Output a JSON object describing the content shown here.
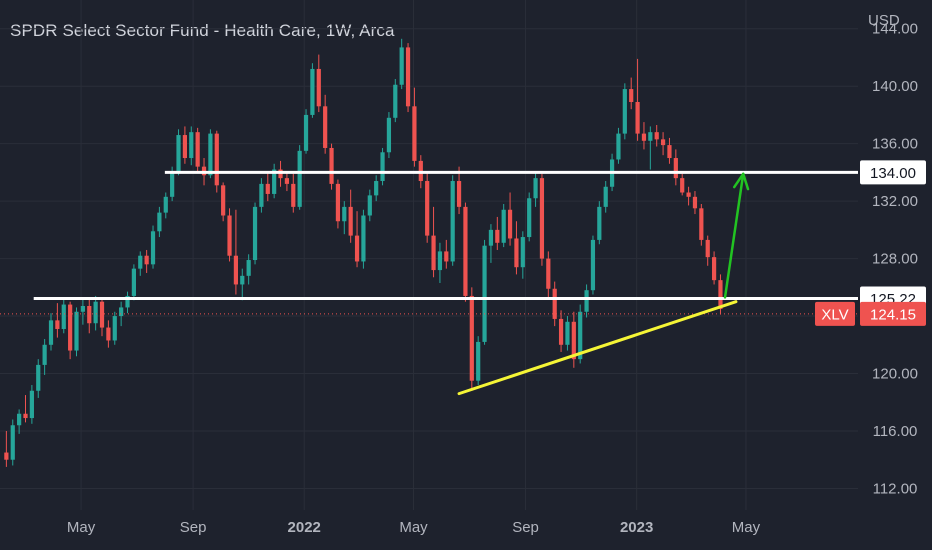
{
  "title": "SPDR Select Sector Fund - Health Care, 1W, Arca",
  "currency": "USD",
  "colors": {
    "background": "#1e222d",
    "grid": "#2a2e39",
    "up": "#26a69a",
    "down": "#ef5350",
    "axis_text": "#b2b5be",
    "horizontal_lines": "#ffffff",
    "trendline": "#f5f536",
    "arrow": "#22c322",
    "price_line": "#ef5350"
  },
  "chart_data": {
    "type": "candlestick",
    "symbol": "XLV",
    "interval": "1W",
    "exchange": "Arca",
    "y_ticks": [
      "112.00",
      "116.00",
      "120.00",
      "124.00",
      "128.00",
      "132.00",
      "136.00",
      "140.00",
      "144.00"
    ],
    "y_range": [
      110.5,
      146.0
    ],
    "x_labels": [
      {
        "label": "May",
        "date": "2021-05-01",
        "bold": false
      },
      {
        "label": "Sep",
        "date": "2021-09-01",
        "bold": false
      },
      {
        "label": "2022",
        "date": "2022-01-01",
        "bold": true
      },
      {
        "label": "May",
        "date": "2022-05-01",
        "bold": false
      },
      {
        "label": "Sep",
        "date": "2022-09-01",
        "bold": false
      },
      {
        "label": "2023",
        "date": "2023-01-01",
        "bold": true
      },
      {
        "label": "May",
        "date": "2023-05-01",
        "bold": false
      }
    ],
    "x_range": [
      "2021-02-01",
      "2023-09-01"
    ],
    "first_candle_week": "2021-02-08",
    "candles": [
      [
        114.5,
        116.0,
        113.5,
        114.0
      ],
      [
        114.0,
        116.8,
        113.6,
        116.4
      ],
      [
        116.4,
        117.5,
        115.8,
        117.2
      ],
      [
        117.2,
        118.5,
        116.6,
        116.9
      ],
      [
        116.9,
        119.2,
        116.5,
        118.8
      ],
      [
        118.8,
        121.0,
        118.3,
        120.6
      ],
      [
        120.6,
        122.4,
        119.9,
        122.0
      ],
      [
        122.0,
        124.2,
        121.6,
        123.7
      ],
      [
        123.7,
        124.9,
        122.5,
        123.1
      ],
      [
        123.1,
        125.3,
        122.8,
        124.8
      ],
      [
        124.8,
        125.0,
        121.0,
        121.6
      ],
      [
        121.6,
        124.6,
        121.2,
        124.3
      ],
      [
        124.3,
        125.3,
        123.4,
        124.7
      ],
      [
        124.7,
        125.2,
        122.8,
        123.5
      ],
      [
        123.5,
        125.4,
        123.0,
        125.0
      ],
      [
        125.0,
        125.3,
        122.6,
        123.2
      ],
      [
        123.2,
        123.7,
        121.8,
        122.3
      ],
      [
        122.3,
        124.3,
        122.0,
        124.0
      ],
      [
        124.0,
        125.0,
        123.3,
        124.6
      ],
      [
        124.6,
        125.7,
        124.2,
        125.4
      ],
      [
        125.4,
        127.6,
        125.1,
        127.3
      ],
      [
        127.3,
        128.5,
        126.8,
        128.2
      ],
      [
        128.2,
        128.6,
        127.0,
        127.6
      ],
      [
        127.6,
        130.3,
        127.3,
        129.9
      ],
      [
        129.9,
        131.6,
        129.5,
        131.2
      ],
      [
        131.2,
        132.6,
        130.8,
        132.3
      ],
      [
        132.3,
        134.4,
        132.0,
        134.0
      ],
      [
        134.0,
        137.0,
        133.8,
        136.6
      ],
      [
        136.6,
        137.2,
        134.6,
        135.0
      ],
      [
        135.0,
        137.2,
        134.5,
        136.8
      ],
      [
        136.8,
        137.1,
        134.0,
        134.4
      ],
      [
        134.4,
        135.0,
        133.1,
        133.8
      ],
      [
        133.8,
        137.0,
        133.6,
        136.7
      ],
      [
        136.7,
        136.9,
        132.6,
        133.1
      ],
      [
        133.1,
        133.3,
        130.6,
        131.0
      ],
      [
        131.0,
        131.5,
        127.8,
        128.2
      ],
      [
        128.2,
        131.4,
        125.5,
        126.2
      ],
      [
        126.2,
        127.3,
        125.1,
        126.8
      ],
      [
        126.8,
        128.3,
        126.2,
        127.9
      ],
      [
        127.9,
        131.9,
        127.6,
        131.6
      ],
      [
        131.6,
        133.6,
        131.2,
        133.2
      ],
      [
        133.2,
        134.0,
        132.0,
        132.5
      ],
      [
        132.5,
        134.6,
        132.2,
        134.2
      ],
      [
        134.2,
        134.8,
        133.0,
        133.6
      ],
      [
        133.6,
        134.0,
        132.7,
        133.2
      ],
      [
        133.2,
        133.9,
        131.2,
        131.6
      ],
      [
        131.6,
        135.9,
        131.4,
        135.5
      ],
      [
        135.5,
        138.4,
        135.3,
        138.0
      ],
      [
        138.0,
        141.6,
        137.8,
        141.2
      ],
      [
        141.2,
        142.2,
        138.2,
        138.6
      ],
      [
        138.6,
        139.4,
        135.3,
        135.7
      ],
      [
        135.7,
        136.0,
        132.8,
        133.2
      ],
      [
        133.2,
        133.5,
        130.1,
        130.6
      ],
      [
        130.6,
        132.0,
        129.7,
        131.6
      ],
      [
        131.6,
        132.8,
        129.1,
        129.6
      ],
      [
        129.6,
        131.3,
        127.4,
        127.8
      ],
      [
        127.8,
        131.4,
        127.3,
        131.0
      ],
      [
        131.0,
        132.8,
        130.6,
        132.4
      ],
      [
        132.4,
        133.8,
        132.0,
        133.4
      ],
      [
        133.4,
        135.7,
        133.1,
        135.4
      ],
      [
        135.4,
        138.2,
        135.0,
        137.8
      ],
      [
        137.8,
        140.5,
        137.5,
        140.1
      ],
      [
        140.1,
        143.3,
        139.8,
        142.7
      ],
      [
        142.7,
        143.0,
        138.2,
        138.6
      ],
      [
        138.6,
        139.9,
        134.4,
        134.8
      ],
      [
        134.8,
        135.2,
        132.9,
        133.4
      ],
      [
        133.4,
        134.0,
        129.1,
        129.6
      ],
      [
        129.6,
        131.6,
        126.7,
        127.2
      ],
      [
        127.2,
        129.1,
        126.3,
        128.5
      ],
      [
        128.5,
        129.3,
        127.3,
        127.8
      ],
      [
        127.8,
        133.8,
        127.5,
        133.4
      ],
      [
        133.4,
        134.4,
        131.1,
        131.6
      ],
      [
        131.6,
        131.9,
        125.0,
        125.4
      ],
      [
        125.4,
        126.0,
        118.8,
        119.5
      ],
      [
        119.5,
        122.6,
        119.2,
        122.2
      ],
      [
        122.2,
        129.3,
        122.0,
        128.9
      ],
      [
        128.9,
        130.4,
        127.7,
        130.0
      ],
      [
        130.0,
        130.9,
        128.6,
        129.1
      ],
      [
        129.1,
        131.8,
        128.8,
        131.4
      ],
      [
        131.4,
        132.6,
        128.9,
        129.4
      ],
      [
        129.4,
        130.6,
        126.9,
        127.4
      ],
      [
        127.4,
        129.9,
        126.6,
        129.5
      ],
      [
        129.5,
        132.6,
        129.2,
        132.2
      ],
      [
        132.2,
        134.0,
        131.6,
        133.6
      ],
      [
        133.6,
        133.9,
        127.5,
        128.0
      ],
      [
        128.0,
        128.5,
        125.3,
        125.9
      ],
      [
        125.9,
        126.4,
        123.3,
        123.8
      ],
      [
        123.8,
        124.4,
        121.5,
        122.0
      ],
      [
        122.0,
        124.0,
        121.6,
        123.6
      ],
      [
        123.6,
        124.3,
        120.4,
        121.0
      ],
      [
        121.0,
        124.8,
        120.7,
        124.3
      ],
      [
        124.3,
        126.2,
        123.9,
        125.8
      ],
      [
        125.8,
        129.6,
        125.5,
        129.3
      ],
      [
        129.3,
        132.0,
        129.0,
        131.6
      ],
      [
        131.6,
        133.4,
        131.2,
        133.0
      ],
      [
        133.0,
        135.3,
        132.7,
        134.9
      ],
      [
        134.9,
        137.1,
        134.6,
        136.7
      ],
      [
        136.7,
        140.2,
        136.3,
        139.8
      ],
      [
        139.8,
        140.6,
        138.4,
        138.9
      ],
      [
        138.9,
        141.9,
        136.2,
        136.7
      ],
      [
        136.7,
        137.5,
        135.6,
        136.2
      ],
      [
        136.2,
        137.2,
        134.2,
        136.8
      ],
      [
        136.8,
        137.3,
        135.8,
        136.3
      ],
      [
        136.3,
        136.8,
        135.2,
        135.9
      ],
      [
        135.9,
        136.4,
        134.6,
        135.0
      ],
      [
        135.0,
        135.6,
        133.1,
        133.6
      ],
      [
        133.6,
        133.9,
        132.4,
        132.6
      ],
      [
        132.6,
        133.0,
        131.7,
        132.3
      ],
      [
        132.3,
        132.7,
        131.1,
        131.5
      ],
      [
        131.5,
        131.8,
        128.9,
        129.3
      ],
      [
        129.3,
        129.6,
        127.5,
        128.1
      ],
      [
        128.1,
        128.5,
        126.2,
        126.5
      ],
      [
        126.5,
        126.9,
        124.1,
        124.5
      ]
    ],
    "last_price": "124.15",
    "annotations": {
      "horizontal_levels": [
        {
          "value": 134.0,
          "label": "134.00",
          "from": "2021-08-01"
        },
        {
          "value": 125.22,
          "label": "125.22",
          "from": "2021-03-10"
        }
      ],
      "trendline": {
        "from": {
          "date": "2022-06-20",
          "value": 118.6
        },
        "to": {
          "date": "2023-04-20",
          "value": 125.0
        }
      },
      "arrow": {
        "from": {
          "date": "2023-04-08",
          "value": 125.3
        },
        "to": {
          "date": "2023-04-28",
          "value": 133.9
        }
      }
    }
  }
}
